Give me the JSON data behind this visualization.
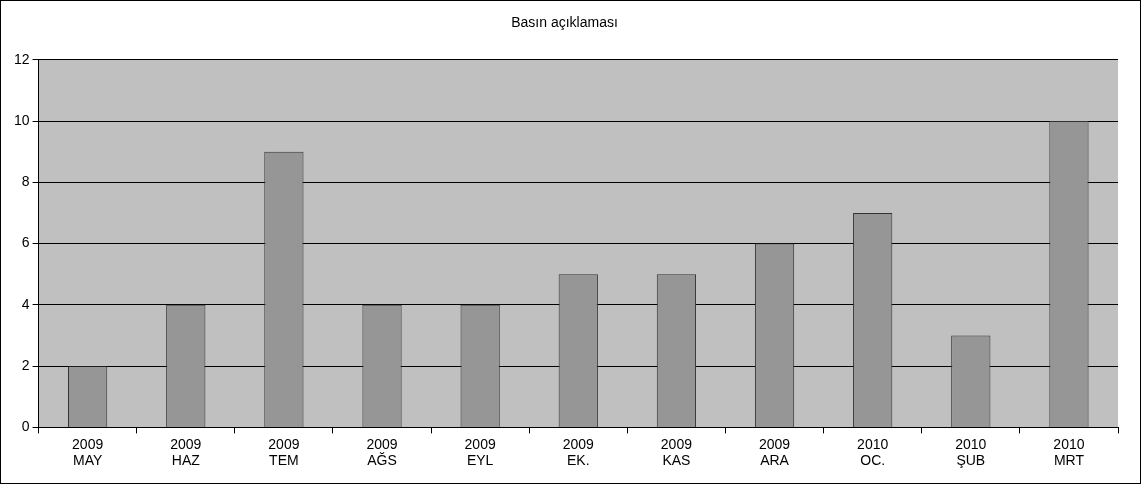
{
  "chart_data": {
    "type": "bar",
    "title": "Basın açıklaması",
    "categories": [
      "2009 MAY",
      "2009 HAZ",
      "2009 TEM",
      "2009 AĞS",
      "2009 EYL",
      "2009 EK.",
      "2009 KAS",
      "2009 ARA",
      "2010 OC.",
      "2010 ŞUB",
      "2010 MRT"
    ],
    "values": [
      2,
      4,
      9,
      4,
      4,
      5,
      5,
      6,
      7,
      3,
      10
    ],
    "color": "#969696",
    "ylim": [
      0,
      12
    ],
    "yticks": [
      0,
      2,
      4,
      6,
      8,
      10,
      12
    ],
    "grid": "y",
    "legend": false
  }
}
